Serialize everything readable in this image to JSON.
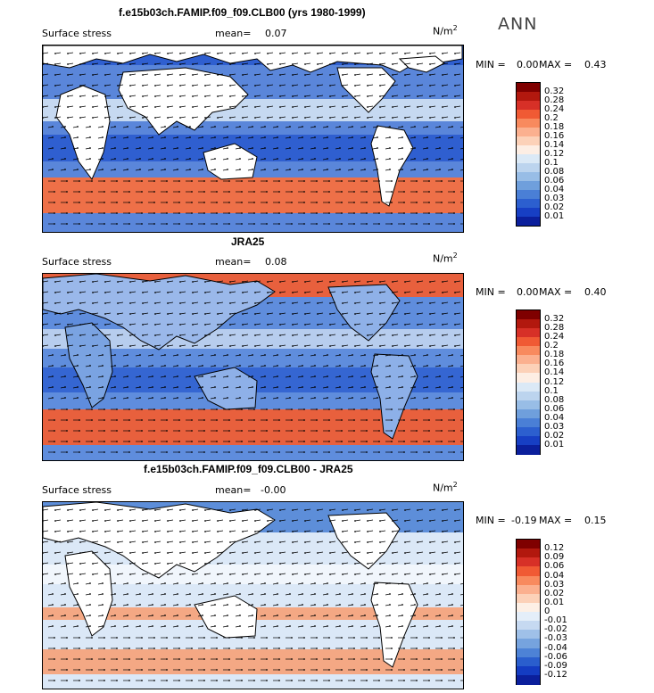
{
  "season": "ANN",
  "panels": [
    {
      "title": "f.e15b03ch.FAMIP.f09_f09.CLB00 (yrs 1980-1999)",
      "variable": "Surface stress",
      "mean_label": "mean=",
      "mean_value": "0.07",
      "unit": "N/m",
      "unit_exp": "2",
      "min_label": "MIN =",
      "min_value": "0.00",
      "max_label": "MAX =",
      "max_value": "0.43",
      "colorbar": {
        "ticks": [
          "0.32",
          "0.28",
          "0.24",
          "0.2",
          "0.18",
          "0.16",
          "0.14",
          "0.12",
          "0.1",
          "0.08",
          "0.06",
          "0.04",
          "0.03",
          "0.02",
          "0.01"
        ],
        "colors": [
          "#7f0000",
          "#b2180e",
          "#d73027",
          "#f05a34",
          "#f88a5e",
          "#fbb08f",
          "#fcd1b8",
          "#fdeee4",
          "#dbe9f6",
          "#bcd4ee",
          "#98bde6",
          "#6f9fdc",
          "#4a7fd6",
          "#2c5fcf",
          "#173fc4",
          "#0b1f9c"
        ]
      },
      "field": {
        "ocean": "#5a86da",
        "jet": "#ee7048",
        "band": "#2f5fd0",
        "light": "#c6d9f1"
      }
    },
    {
      "title": "JRA25",
      "variable": "Surface stress",
      "mean_label": "mean=",
      "mean_value": "0.08",
      "unit": "N/m",
      "unit_exp": "2",
      "min_label": "MIN =",
      "min_value": "0.00",
      "max_label": "MAX =",
      "max_value": "0.40",
      "colorbar": {
        "ticks": [
          "0.32",
          "0.28",
          "0.24",
          "0.2",
          "0.18",
          "0.16",
          "0.14",
          "0.12",
          "0.1",
          "0.08",
          "0.06",
          "0.04",
          "0.03",
          "0.02",
          "0.01"
        ],
        "colors": [
          "#7f0000",
          "#b2180e",
          "#d73027",
          "#f05a34",
          "#f88a5e",
          "#fbb08f",
          "#fcd1b8",
          "#fdeee4",
          "#dbe9f6",
          "#bcd4ee",
          "#98bde6",
          "#6f9fdc",
          "#4a7fd6",
          "#2c5fcf",
          "#173fc4",
          "#0b1f9c"
        ]
      },
      "field": {
        "ocean": "#5f8ddd",
        "jet": "#e8603d",
        "band": "#3566d2",
        "light": "#b7cdee"
      }
    },
    {
      "title": "f.e15b03ch.FAMIP.f09_f09.CLB00 - JRA25",
      "variable": "Surface stress",
      "mean_label": "mean=",
      "mean_value": "-0.00",
      "unit": "N/m",
      "unit_exp": "2",
      "min_label": "MIN =",
      "min_value": "-0.19",
      "max_label": "MAX =",
      "max_value": "0.15",
      "colorbar": {
        "ticks": [
          "0.12",
          "0.09",
          "0.06",
          "0.04",
          "0.03",
          "0.02",
          "0.01",
          "0",
          "-0.01",
          "-0.02",
          "-0.03",
          "-0.04",
          "-0.06",
          "-0.09",
          "-0.12"
        ],
        "colors": [
          "#7f0000",
          "#b2180e",
          "#d73027",
          "#f05a34",
          "#f88a5e",
          "#fbb08f",
          "#fcd1b8",
          "#fdf0e6",
          "#e4eef9",
          "#c6d9f1",
          "#9fc0e8",
          "#76a3de",
          "#4d82d6",
          "#2a5ecd",
          "#143cc2",
          "#0b1f9c"
        ]
      },
      "field": {
        "ocean": "#dbe8f7",
        "jet": "#f4a884",
        "band": "#5d8ed9",
        "light": "#f1f6fc"
      }
    }
  ]
}
